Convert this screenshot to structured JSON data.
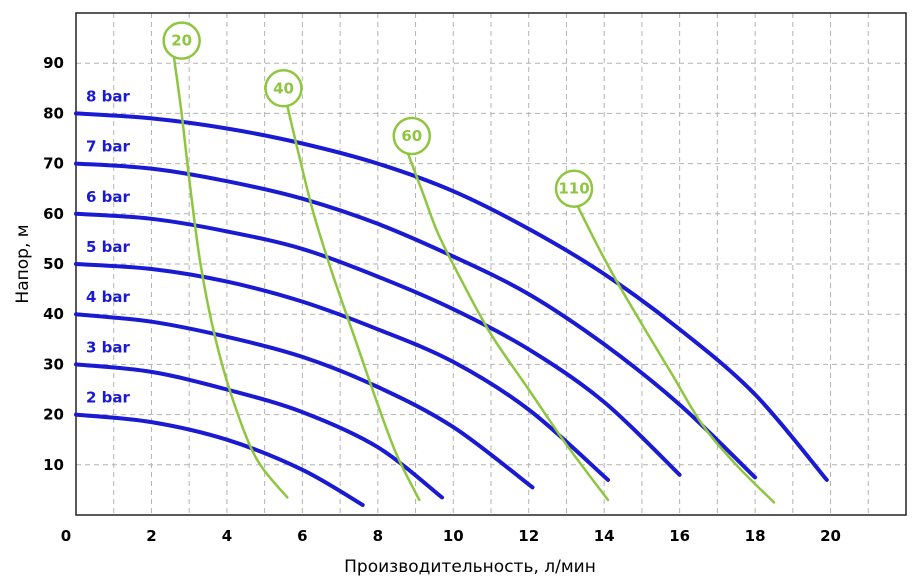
{
  "chart_data": {
    "type": "line",
    "title": "",
    "xlabel": "Производительность, л/мин",
    "ylabel": "Напор, м",
    "xlim": [
      0,
      22
    ],
    "ylim": [
      0,
      100
    ],
    "x_ticks": [
      0,
      2,
      4,
      6,
      8,
      10,
      12,
      14,
      16,
      18,
      20
    ],
    "y_ticks": [
      10,
      20,
      30,
      40,
      50,
      60,
      70,
      80,
      90
    ],
    "grid": true,
    "legend": "none",
    "colors": {
      "pressure_curves": "#1a1ad2",
      "consumption_curves": "#8ec63f"
    },
    "pressure_series": [
      {
        "name": "8 bar",
        "points": [
          [
            0,
            80
          ],
          [
            2,
            79
          ],
          [
            4,
            77
          ],
          [
            6,
            74
          ],
          [
            8,
            70
          ],
          [
            10,
            64.5
          ],
          [
            12,
            57
          ],
          [
            14,
            48
          ],
          [
            16,
            37
          ],
          [
            18,
            24
          ],
          [
            19.9,
            7
          ]
        ]
      },
      {
        "name": "7 bar",
        "points": [
          [
            0,
            70
          ],
          [
            2,
            69
          ],
          [
            4,
            66.5
          ],
          [
            6,
            63
          ],
          [
            8,
            58
          ],
          [
            10,
            51.5
          ],
          [
            12,
            44
          ],
          [
            14,
            34
          ],
          [
            16,
            22
          ],
          [
            18,
            7.5
          ]
        ]
      },
      {
        "name": "6 bar",
        "points": [
          [
            0,
            60
          ],
          [
            2,
            59
          ],
          [
            4,
            56.5
          ],
          [
            6,
            53
          ],
          [
            8,
            47.5
          ],
          [
            10,
            41
          ],
          [
            12,
            33
          ],
          [
            14,
            22.5
          ],
          [
            16,
            8
          ]
        ]
      },
      {
        "name": "5 bar",
        "points": [
          [
            0,
            50
          ],
          [
            2,
            49
          ],
          [
            4,
            46.5
          ],
          [
            6,
            42.5
          ],
          [
            8,
            37
          ],
          [
            10,
            30.5
          ],
          [
            12,
            21
          ],
          [
            14.1,
            7
          ]
        ]
      },
      {
        "name": "4 bar",
        "points": [
          [
            0,
            40
          ],
          [
            2,
            38.5
          ],
          [
            4,
            35.5
          ],
          [
            6,
            31.5
          ],
          [
            8,
            25.5
          ],
          [
            10,
            17.5
          ],
          [
            12.1,
            5.5
          ]
        ]
      },
      {
        "name": "3 bar",
        "points": [
          [
            0,
            30
          ],
          [
            2,
            28.5
          ],
          [
            4,
            25
          ],
          [
            6,
            20.5
          ],
          [
            8,
            13.5
          ],
          [
            9.7,
            3.5
          ]
        ]
      },
      {
        "name": "2 bar",
        "points": [
          [
            0,
            20
          ],
          [
            2,
            18.5
          ],
          [
            4,
            15
          ],
          [
            6,
            9
          ],
          [
            7.6,
            2
          ]
        ]
      }
    ],
    "consumption_series": [
      {
        "name": "20",
        "label_at": [
          2.8,
          94.5
        ],
        "points": [
          [
            2.6,
            91
          ],
          [
            2.8,
            80
          ],
          [
            3.0,
            67
          ],
          [
            3.3,
            50
          ],
          [
            3.7,
            35
          ],
          [
            4.2,
            22
          ],
          [
            4.8,
            11
          ],
          [
            5.6,
            3.5
          ]
        ]
      },
      {
        "name": "40",
        "label_at": [
          5.5,
          85
        ],
        "points": [
          [
            5.6,
            81.5
          ],
          [
            5.9,
            72
          ],
          [
            6.3,
            60
          ],
          [
            6.8,
            48
          ],
          [
            7.4,
            35
          ],
          [
            8.0,
            22
          ],
          [
            8.5,
            12
          ],
          [
            9.1,
            3
          ]
        ]
      },
      {
        "name": "60",
        "label_at": [
          8.9,
          75.5
        ],
        "points": [
          [
            8.8,
            72
          ],
          [
            9.2,
            64
          ],
          [
            9.6,
            56
          ],
          [
            10.2,
            47
          ],
          [
            11.0,
            36
          ],
          [
            12.0,
            25
          ],
          [
            13.0,
            14
          ],
          [
            14.1,
            3
          ]
        ]
      },
      {
        "name": "110",
        "label_at": [
          13.2,
          65
        ],
        "points": [
          [
            13.3,
            61.5
          ],
          [
            13.8,
            54
          ],
          [
            14.3,
            47
          ],
          [
            15.0,
            38
          ],
          [
            15.8,
            28
          ],
          [
            16.6,
            18
          ],
          [
            17.5,
            10
          ],
          [
            18.5,
            2.5
          ]
        ]
      }
    ]
  }
}
